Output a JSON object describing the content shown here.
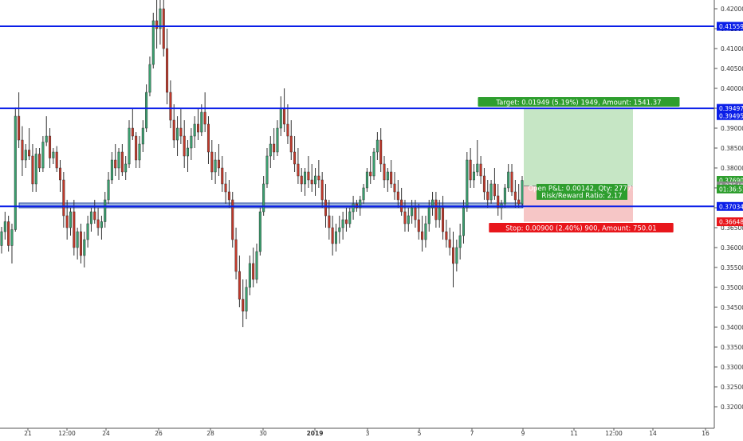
{
  "chart_data": {
    "type": "candlestick",
    "y_axis": {
      "position": "right",
      "range": [
        0.318,
        0.4225
      ],
      "ticks": [
        "0.42000",
        "0.41500",
        "0.41000",
        "0.40500",
        "0.40000",
        "0.39500",
        "0.39000",
        "0.38500",
        "0.38000",
        "0.37500",
        "0.37000",
        "0.36500",
        "0.36000",
        "0.35500",
        "0.35000",
        "0.34500",
        "0.34000",
        "0.33500",
        "0.33000",
        "0.32500",
        "0.32000"
      ]
    },
    "x_axis": {
      "ticks": [
        "21",
        "12:00",
        "24",
        "26",
        "28",
        "30",
        "2019",
        "3",
        "5",
        "7",
        "9",
        "11",
        "12:00",
        "14",
        "16"
      ]
    },
    "grid": false,
    "horizontal_lines": [
      0.41559,
      0.39497,
      0.37034
    ],
    "support_zone": [
      0.37,
      0.3712
    ],
    "position": {
      "entry": 0.37548,
      "target": 0.39497,
      "stop": 0.36648,
      "target_label": "Target: 0.01949 (5.19%) 1949, Amount: 1541.37",
      "pnl_label_1": "Open P&L: 0.00142, Qty: 27777",
      "pnl_label_2": "Risk/Reward Ratio: 2.17",
      "stop_label": "Stop: 0.00900 (2.40%) 900, Amount: 750.01"
    },
    "price_tags": [
      {
        "value": 0.41559,
        "text": "0.41559",
        "kind": "line"
      },
      {
        "value": 0.39497,
        "text": "0.39497",
        "kind": "line"
      },
      {
        "value": 0.39495,
        "text": "0.39495",
        "kind": "line"
      },
      {
        "value": 0.3769,
        "text": "0.37690",
        "kind": "last"
      },
      {
        "value": 0.37548,
        "text": "0.37548",
        "kind": "entry"
      },
      {
        "value": 0.37034,
        "text": "0.37034",
        "kind": "line"
      },
      {
        "value": 0.36648,
        "text": "0.36648",
        "kind": "stop"
      }
    ],
    "countdown": "01:36:51",
    "candles": [
      [
        0.3605,
        0.3652,
        0.3585,
        0.364
      ],
      [
        0.364,
        0.369,
        0.362,
        0.3665
      ],
      [
        0.3665,
        0.368,
        0.359,
        0.3605
      ],
      [
        0.3605,
        0.366,
        0.356,
        0.3645
      ],
      [
        0.3645,
        0.3952,
        0.364,
        0.393
      ],
      [
        0.393,
        0.399,
        0.385,
        0.387
      ],
      [
        0.387,
        0.3905,
        0.378,
        0.382
      ],
      [
        0.382,
        0.386,
        0.38,
        0.3845
      ],
      [
        0.3845,
        0.39,
        0.382,
        0.383
      ],
      [
        0.383,
        0.386,
        0.374,
        0.376
      ],
      [
        0.376,
        0.385,
        0.374,
        0.3835
      ],
      [
        0.3835,
        0.385,
        0.379,
        0.38
      ],
      [
        0.38,
        0.388,
        0.379,
        0.3865
      ],
      [
        0.3865,
        0.393,
        0.3855,
        0.388
      ],
      [
        0.388,
        0.39,
        0.38,
        0.3825
      ],
      [
        0.3825,
        0.385,
        0.381,
        0.384
      ],
      [
        0.384,
        0.3855,
        0.379,
        0.38
      ],
      [
        0.38,
        0.382,
        0.374,
        0.377
      ],
      [
        0.377,
        0.379,
        0.365,
        0.368
      ],
      [
        0.368,
        0.372,
        0.362,
        0.365
      ],
      [
        0.365,
        0.37,
        0.363,
        0.369
      ],
      [
        0.369,
        0.372,
        0.358,
        0.36
      ],
      [
        0.36,
        0.365,
        0.357,
        0.364
      ],
      [
        0.364,
        0.366,
        0.356,
        0.358
      ],
      [
        0.358,
        0.364,
        0.355,
        0.362
      ],
      [
        0.362,
        0.368,
        0.36,
        0.366
      ],
      [
        0.366,
        0.37,
        0.364,
        0.369
      ],
      [
        0.369,
        0.372,
        0.366,
        0.367
      ],
      [
        0.367,
        0.37,
        0.363,
        0.365
      ],
      [
        0.365,
        0.368,
        0.362,
        0.3665
      ],
      [
        0.3665,
        0.374,
        0.365,
        0.372
      ],
      [
        0.372,
        0.379,
        0.371,
        0.377
      ],
      [
        0.377,
        0.384,
        0.376,
        0.382
      ],
      [
        0.382,
        0.386,
        0.378,
        0.38
      ],
      [
        0.38,
        0.385,
        0.377,
        0.384
      ],
      [
        0.384,
        0.386,
        0.378,
        0.379
      ],
      [
        0.379,
        0.383,
        0.377,
        0.381
      ],
      [
        0.381,
        0.392,
        0.38,
        0.39
      ],
      [
        0.39,
        0.395,
        0.387,
        0.388
      ],
      [
        0.388,
        0.389,
        0.38,
        0.382
      ],
      [
        0.382,
        0.388,
        0.38,
        0.386
      ],
      [
        0.386,
        0.392,
        0.384,
        0.39
      ],
      [
        0.39,
        0.401,
        0.389,
        0.399
      ],
      [
        0.399,
        0.408,
        0.398,
        0.406
      ],
      [
        0.406,
        0.419,
        0.405,
        0.417
      ],
      [
        0.417,
        0.4225,
        0.41,
        0.415
      ],
      [
        0.415,
        0.423,
        0.411,
        0.42
      ],
      [
        0.42,
        0.4225,
        0.408,
        0.41
      ],
      [
        0.41,
        0.415,
        0.396,
        0.399
      ],
      [
        0.399,
        0.402,
        0.39,
        0.392
      ],
      [
        0.392,
        0.396,
        0.385,
        0.387
      ],
      [
        0.387,
        0.393,
        0.383,
        0.39
      ],
      [
        0.39,
        0.395,
        0.386,
        0.388
      ],
      [
        0.388,
        0.392,
        0.38,
        0.383
      ],
      [
        0.383,
        0.387,
        0.379,
        0.385
      ],
      [
        0.385,
        0.39,
        0.382,
        0.388
      ],
      [
        0.388,
        0.393,
        0.385,
        0.391
      ],
      [
        0.391,
        0.395,
        0.387,
        0.389
      ],
      [
        0.389,
        0.396,
        0.388,
        0.394
      ],
      [
        0.394,
        0.399,
        0.389,
        0.391
      ],
      [
        0.391,
        0.393,
        0.381,
        0.384
      ],
      [
        0.384,
        0.387,
        0.377,
        0.379
      ],
      [
        0.379,
        0.384,
        0.376,
        0.382
      ],
      [
        0.382,
        0.386,
        0.378,
        0.38
      ],
      [
        0.38,
        0.383,
        0.374,
        0.376
      ],
      [
        0.376,
        0.379,
        0.371,
        0.374
      ],
      [
        0.374,
        0.377,
        0.37,
        0.372
      ],
      [
        0.372,
        0.374,
        0.36,
        0.362
      ],
      [
        0.362,
        0.365,
        0.352,
        0.354
      ],
      [
        0.354,
        0.358,
        0.345,
        0.347
      ],
      [
        0.347,
        0.352,
        0.34,
        0.344
      ],
      [
        0.344,
        0.352,
        0.342,
        0.35
      ],
      [
        0.35,
        0.358,
        0.348,
        0.356
      ],
      [
        0.356,
        0.36,
        0.35,
        0.352
      ],
      [
        0.352,
        0.361,
        0.351,
        0.359
      ],
      [
        0.359,
        0.37,
        0.358,
        0.369
      ],
      [
        0.369,
        0.378,
        0.368,
        0.376
      ],
      [
        0.376,
        0.385,
        0.375,
        0.383
      ],
      [
        0.383,
        0.388,
        0.38,
        0.386
      ],
      [
        0.386,
        0.39,
        0.382,
        0.384
      ],
      [
        0.384,
        0.392,
        0.383,
        0.39
      ],
      [
        0.39,
        0.398,
        0.388,
        0.395
      ],
      [
        0.395,
        0.4,
        0.389,
        0.391
      ],
      [
        0.391,
        0.396,
        0.386,
        0.388
      ],
      [
        0.388,
        0.392,
        0.382,
        0.384
      ],
      [
        0.384,
        0.388,
        0.379,
        0.381
      ],
      [
        0.381,
        0.385,
        0.376,
        0.378
      ],
      [
        0.378,
        0.38,
        0.374,
        0.376
      ],
      [
        0.376,
        0.38,
        0.373,
        0.379
      ],
      [
        0.379,
        0.383,
        0.375,
        0.377
      ],
      [
        0.377,
        0.381,
        0.374,
        0.376
      ],
      [
        0.376,
        0.38,
        0.373,
        0.378
      ],
      [
        0.378,
        0.382,
        0.375,
        0.377
      ],
      [
        0.377,
        0.379,
        0.37,
        0.372
      ],
      [
        0.372,
        0.376,
        0.365,
        0.368
      ],
      [
        0.368,
        0.372,
        0.362,
        0.365
      ],
      [
        0.365,
        0.368,
        0.358,
        0.361
      ],
      [
        0.361,
        0.366,
        0.359,
        0.364
      ],
      [
        0.364,
        0.368,
        0.361,
        0.365
      ],
      [
        0.365,
        0.369,
        0.362,
        0.367
      ],
      [
        0.367,
        0.37,
        0.364,
        0.366
      ],
      [
        0.366,
        0.37,
        0.365,
        0.369
      ],
      [
        0.369,
        0.373,
        0.367,
        0.371
      ],
      [
        0.371,
        0.372,
        0.369,
        0.37
      ],
      [
        0.37,
        0.373,
        0.368,
        0.372
      ],
      [
        0.372,
        0.376,
        0.371,
        0.375
      ],
      [
        0.375,
        0.38,
        0.374,
        0.379
      ],
      [
        0.379,
        0.383,
        0.376,
        0.378
      ],
      [
        0.378,
        0.385,
        0.377,
        0.384
      ],
      [
        0.384,
        0.389,
        0.382,
        0.387
      ],
      [
        0.387,
        0.39,
        0.379,
        0.381
      ],
      [
        0.381,
        0.383,
        0.375,
        0.377
      ],
      [
        0.377,
        0.38,
        0.374,
        0.379
      ],
      [
        0.379,
        0.382,
        0.375,
        0.376
      ],
      [
        0.376,
        0.379,
        0.372,
        0.374
      ],
      [
        0.374,
        0.377,
        0.37,
        0.372
      ],
      [
        0.372,
        0.375,
        0.368,
        0.369
      ],
      [
        0.369,
        0.372,
        0.364,
        0.366
      ],
      [
        0.366,
        0.37,
        0.364,
        0.368
      ],
      [
        0.368,
        0.372,
        0.366,
        0.37
      ],
      [
        0.37,
        0.372,
        0.365,
        0.367
      ],
      [
        0.367,
        0.371,
        0.362,
        0.364
      ],
      [
        0.364,
        0.368,
        0.359,
        0.362
      ],
      [
        0.362,
        0.368,
        0.36,
        0.366
      ],
      [
        0.366,
        0.372,
        0.364,
        0.37
      ],
      [
        0.37,
        0.374,
        0.368,
        0.372
      ],
      [
        0.372,
        0.374,
        0.365,
        0.367
      ],
      [
        0.367,
        0.372,
        0.365,
        0.37
      ],
      [
        0.37,
        0.373,
        0.362,
        0.364
      ],
      [
        0.364,
        0.367,
        0.36,
        0.362
      ],
      [
        0.362,
        0.365,
        0.358,
        0.36
      ],
      [
        0.36,
        0.364,
        0.35,
        0.356
      ],
      [
        0.356,
        0.362,
        0.354,
        0.36
      ],
      [
        0.36,
        0.366,
        0.357,
        0.363
      ],
      [
        0.363,
        0.372,
        0.361,
        0.37
      ],
      [
        0.37,
        0.384,
        0.369,
        0.382
      ],
      [
        0.382,
        0.385,
        0.375,
        0.377
      ],
      [
        0.377,
        0.381,
        0.375,
        0.379
      ],
      [
        0.379,
        0.387,
        0.378,
        0.381
      ],
      [
        0.381,
        0.383,
        0.376,
        0.378
      ],
      [
        0.378,
        0.38,
        0.372,
        0.374
      ],
      [
        0.374,
        0.377,
        0.37,
        0.372
      ],
      [
        0.372,
        0.377,
        0.371,
        0.376
      ],
      [
        0.376,
        0.38,
        0.372,
        0.373
      ],
      [
        0.373,
        0.376,
        0.368,
        0.37
      ],
      [
        0.37,
        0.372,
        0.367,
        0.371
      ],
      [
        0.371,
        0.376,
        0.37,
        0.375
      ],
      [
        0.375,
        0.381,
        0.374,
        0.379
      ],
      [
        0.379,
        0.381,
        0.373,
        0.374
      ],
      [
        0.374,
        0.377,
        0.37,
        0.372
      ],
      [
        0.372,
        0.376,
        0.37,
        0.371
      ],
      [
        0.371,
        0.378,
        0.37,
        0.3769
      ]
    ]
  }
}
